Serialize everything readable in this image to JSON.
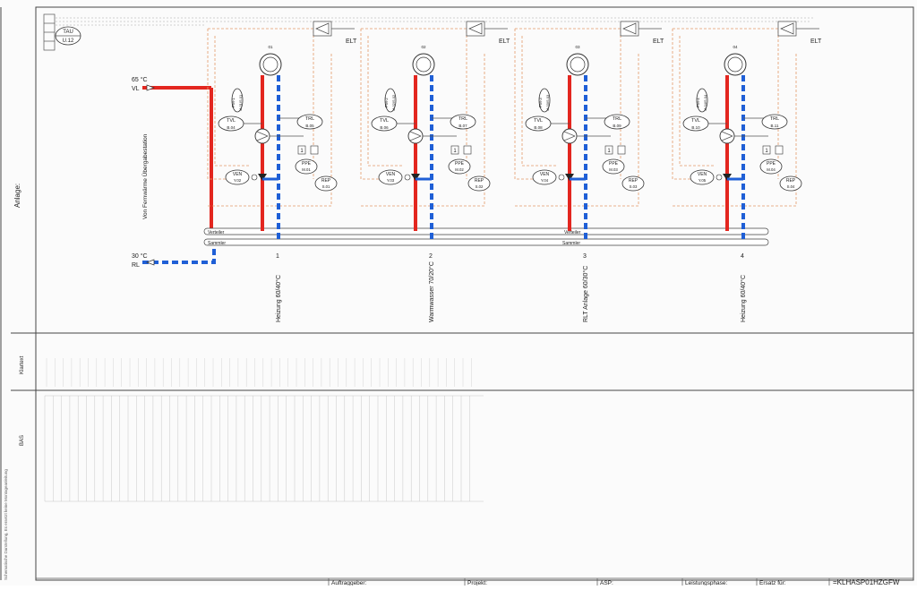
{
  "sheet": {
    "anlage_label": "Anlage:",
    "bas_label": "BAS",
    "klartext_label": "Klartext",
    "side_note": "Schematische Darstellung, Es ersetzt keine Montageanleitung",
    "tau": {
      "code": "TAU",
      "addr": "U.12"
    },
    "source_text": "Von Fernwärme Übergabestation"
  },
  "supply": {
    "temp": "65 °C",
    "label": "VL"
  },
  "return": {
    "temp": "30 °C",
    "label": "RL"
  },
  "headers": {
    "verteiler": "Verteiler",
    "sammler": "Sammler"
  },
  "circuits": [
    {
      "num": "01",
      "elt": "ELT",
      "pump": "PM-1\nM.01/S.01",
      "tvl": {
        "code": "TVL",
        "addr": "B.04"
      },
      "trl": {
        "code": "TRL",
        "addr": "B.05"
      },
      "ppe": {
        "code": "PPE",
        "addr": "M.01"
      },
      "ven": {
        "code": "VEN",
        "addr": "Y.02"
      },
      "rep": {
        "code": "REP",
        "addr": "S.01"
      },
      "index": "1",
      "name": "Heizung 60/40°C"
    },
    {
      "num": "02",
      "elt": "ELT",
      "pump": "PM-2\nM.02/S.02",
      "tvl": {
        "code": "TVL",
        "addr": "B.06"
      },
      "trl": {
        "code": "TRL",
        "addr": "B.07"
      },
      "ppe": {
        "code": "PPE",
        "addr": "M.02"
      },
      "ven": {
        "code": "VEN",
        "addr": "Y.03"
      },
      "rep": {
        "code": "REP",
        "addr": "S.02"
      },
      "index": "2",
      "name": "Warmwasser 70/20°C"
    },
    {
      "num": "03",
      "elt": "ELT",
      "pump": "PM-3\nM.03/S.03",
      "tvl": {
        "code": "TVL",
        "addr": "B.08"
      },
      "trl": {
        "code": "TRL",
        "addr": "B.09"
      },
      "ppe": {
        "code": "PPE",
        "addr": "M.03"
      },
      "ven": {
        "code": "VEN",
        "addr": "Y.04"
      },
      "rep": {
        "code": "REP",
        "addr": "S.03"
      },
      "index": "3",
      "name": "RLT Anlage 60/30°C"
    },
    {
      "num": "04",
      "elt": "ELT",
      "pump": "PM-4\nM.04/S.04",
      "tvl": {
        "code": "TVL",
        "addr": "B.10"
      },
      "trl": {
        "code": "TRL",
        "addr": "B.11"
      },
      "ppe": {
        "code": "PPE",
        "addr": "M.04"
      },
      "ven": {
        "code": "VEN",
        "addr": "Y.05"
      },
      "rep": {
        "code": "REP",
        "addr": "S.04"
      },
      "index": "4",
      "name": "Heizung 60/40°C"
    }
  ],
  "title_block": {
    "fields": [
      "Auftraggeber:",
      "Projekt:",
      "ASP:",
      "Leistungsphase:",
      "Ersatz für:"
    ],
    "drawing_no": "=KLHASP01HZGFW"
  },
  "colors": {
    "hot": "#e3261f",
    "cold": "#1f5fd6",
    "signal": "#e39a6a"
  }
}
